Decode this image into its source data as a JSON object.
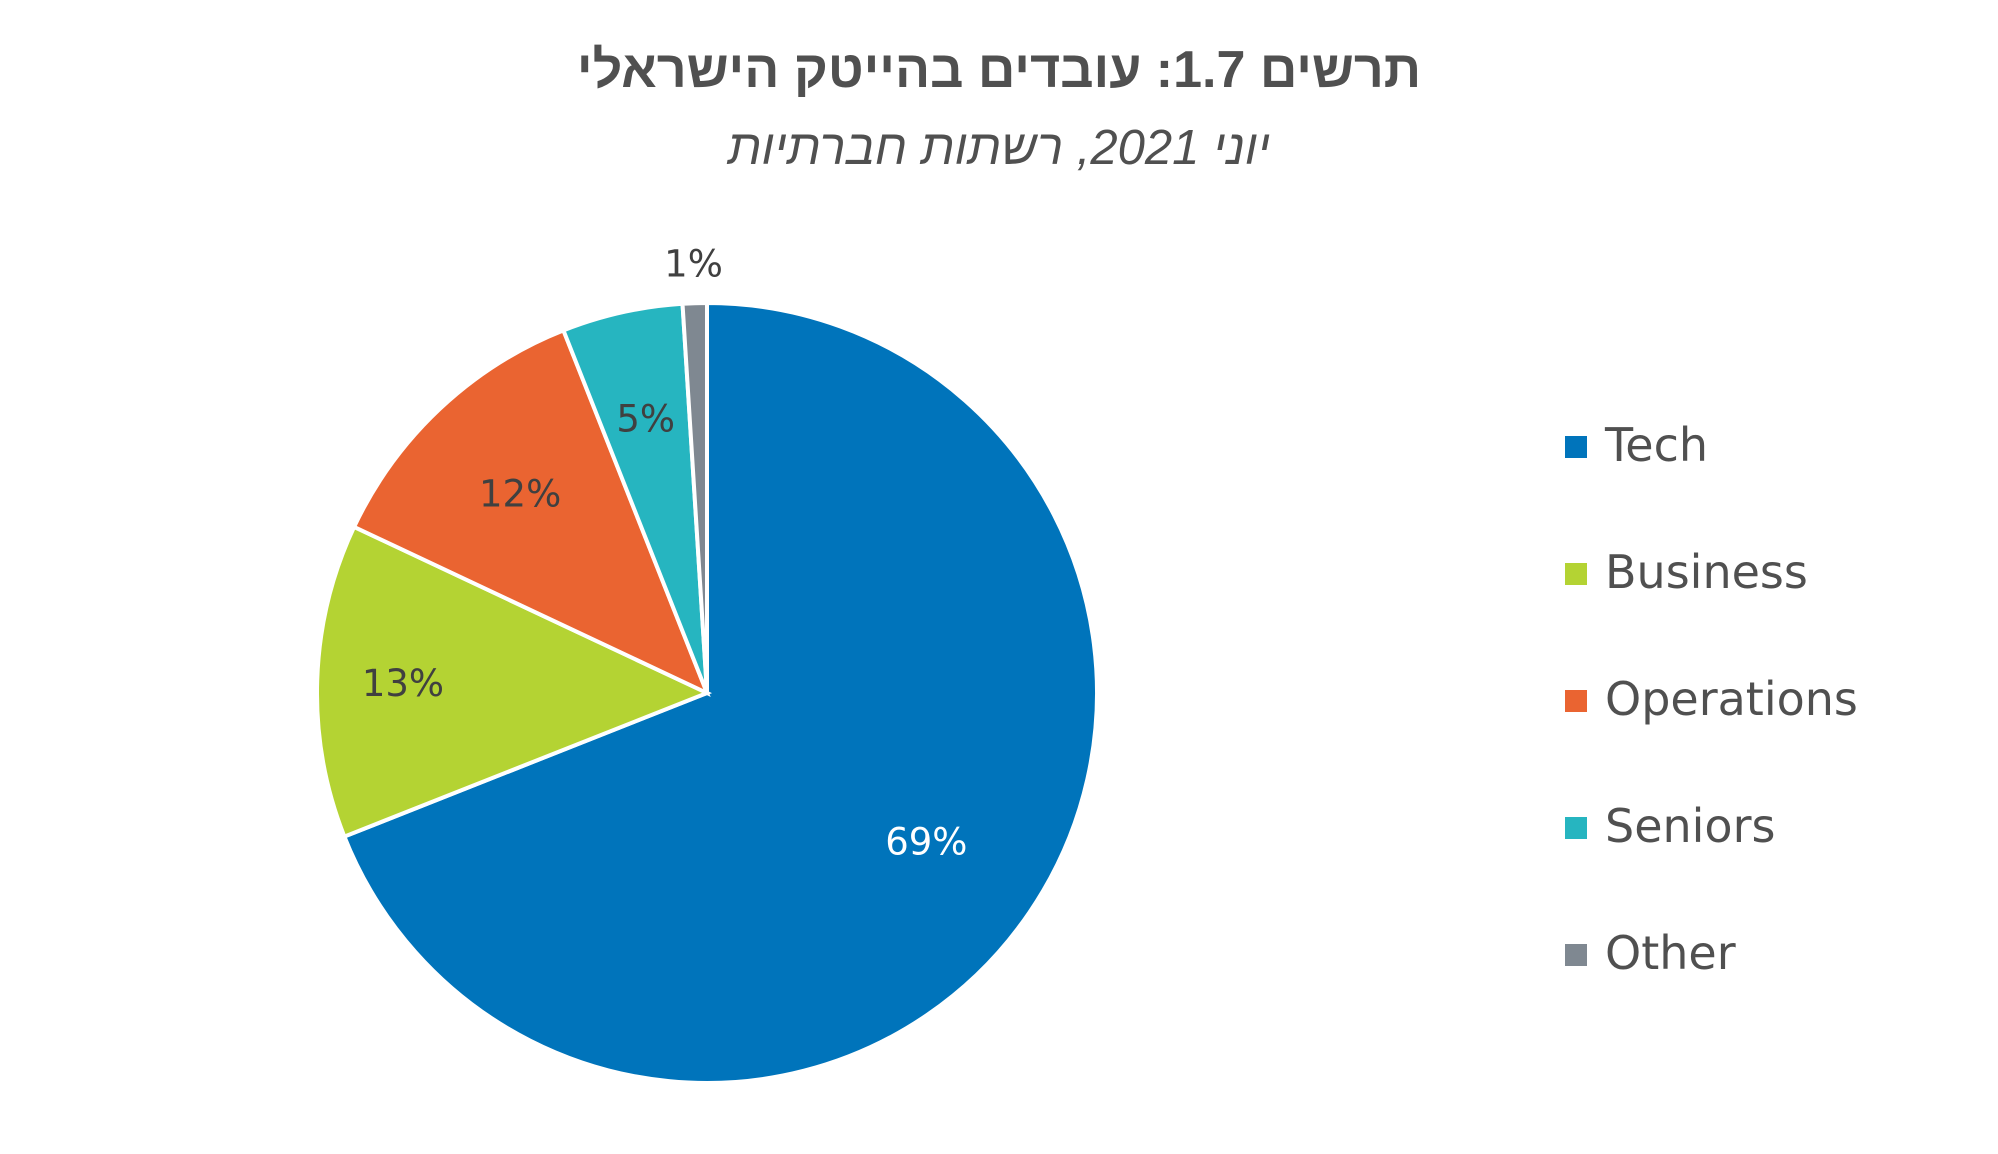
{
  "chart_data": {
    "type": "pie",
    "title": "תרשים 1.7: עובדים בהייטק הישראלי",
    "subtitle": "יוני 2021, רשתות חברתיות",
    "categories": [
      "Tech",
      "Business",
      "Operations",
      "Seniors",
      "Other"
    ],
    "values": [
      69,
      13,
      12,
      5,
      1
    ],
    "labels": [
      "69%",
      "13%",
      "12%",
      "5%",
      "1%"
    ],
    "colors": [
      "#0074BB",
      "#B4D333",
      "#EA6431",
      "#26B5C0",
      "#7F8891"
    ],
    "label_colors": [
      "#ffffff",
      "#404040",
      "#404040",
      "#404040",
      "#404040"
    ],
    "legend_position": "right"
  }
}
